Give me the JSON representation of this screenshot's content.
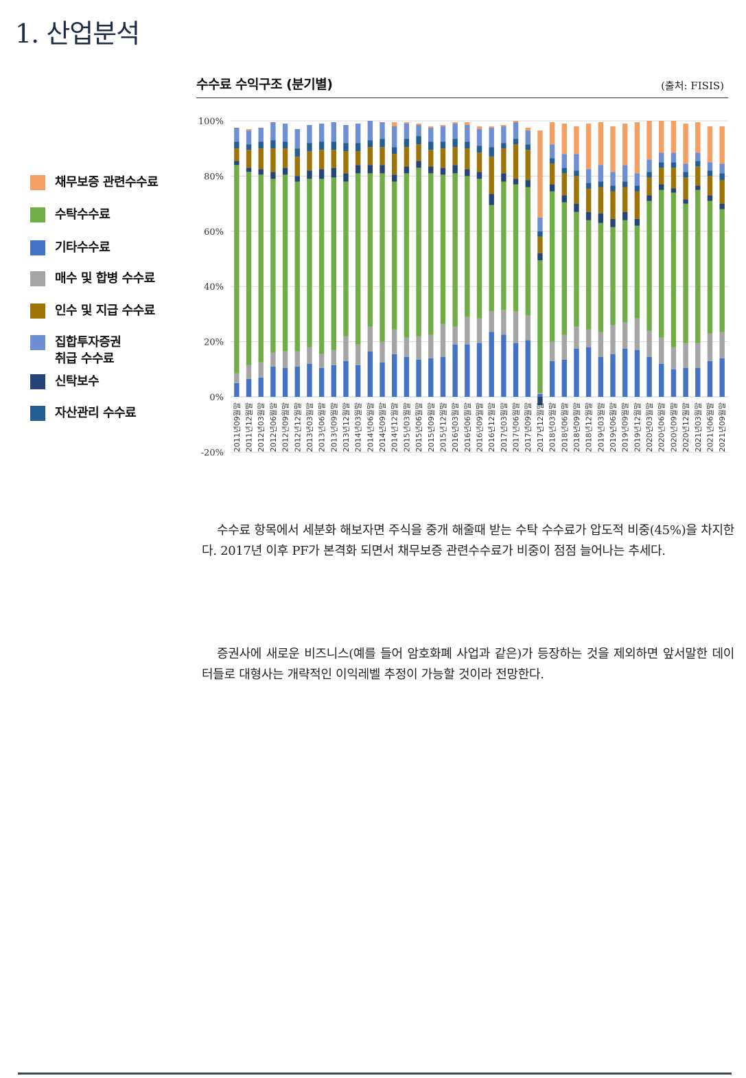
{
  "section_title": "1. 산업분석",
  "chart_header": {
    "title": "수수료 수익구조 (분기별)",
    "source": "(출처:  FISIS)"
  },
  "paragraphs": [
    "수수료 항목에서 세분화 해보자면 주식을 중개 해줄때 받는 수탁 수수료가 압도적 비중(45%)을 차지한다. 2017년 이후 PF가 본격화 되면서 채무보증 관련수수료가 비중이 점점 늘어나는 추세다.",
    "증권사에 새로운 비즈니스(예를 들어 암호화폐 사업과 같은)가 등장하는 것을 제외하면 앞서말한 데이터들로 대형사는 개략적인 이익레벨 추정이 가능할 것이라 전망한다."
  ],
  "chart_data": {
    "type": "bar",
    "stacked": true,
    "title": "수수료 수익구조 (분기별)",
    "xlabel": "",
    "ylabel": "",
    "ylim": [
      -20,
      100
    ],
    "yticks": [
      "-20%",
      "0%",
      "20%",
      "40%",
      "60%",
      "80%",
      "100%"
    ],
    "grid": true,
    "legend_position": "left",
    "categories": [
      "2011년09월말",
      "2011년12월말",
      "2012년03월말",
      "2012년06월말",
      "2012년09월말",
      "2012년12월말",
      "2013년03월말",
      "2013년06월말",
      "2013년09월말",
      "2013년12월말",
      "2014년03월말",
      "2014년06월말",
      "2014년09월말",
      "2014년12월말",
      "2015년03월말",
      "2015년06월말",
      "2015년09월말",
      "2015년12월말",
      "2016년03월말",
      "2016년06월말",
      "2016년09월말",
      "2016년12월말",
      "2017년03월말",
      "2017년06월말",
      "2017년09월말",
      "2017년12월말",
      "2018년03월말",
      "2018년06월말",
      "2018년09월말",
      "2018년12월말",
      "2019년03월말",
      "2019년06월말",
      "2019년09월말",
      "2019년12월말",
      "2020년03월말",
      "2020년06월말",
      "2020년09월말",
      "2020년12월말",
      "2021년03월말",
      "2021년06월말",
      "2021년09월말"
    ],
    "series": [
      {
        "name": "기타수수료",
        "color": "#4472c4",
        "values": [
          5,
          6.5,
          7,
          11,
          10.5,
          11,
          12,
          10.5,
          11.5,
          13,
          11.5,
          16.5,
          12.5,
          15.5,
          14.5,
          13.5,
          14,
          14.5,
          19,
          19,
          19.5,
          23.5,
          22.5,
          19.5,
          20.5,
          1,
          13,
          13.5,
          17.5,
          18,
          14.5,
          15.5,
          17.5,
          17,
          14.5,
          12,
          10,
          10.5,
          10.5,
          13,
          14
        ]
      },
      {
        "name": "매수 및 합병 수수료",
        "color": "#a5a5a5",
        "values": [
          3.5,
          5,
          5.5,
          5,
          6,
          5.5,
          6,
          5,
          5.5,
          9,
          7.5,
          9,
          7.5,
          9,
          7,
          8.5,
          8.5,
          12,
          6.5,
          10,
          9,
          7.5,
          9,
          11.5,
          9,
          0.5,
          7,
          9,
          8,
          6.5,
          9,
          10.5,
          9.5,
          11.5,
          9.5,
          9.5,
          8,
          9,
          9,
          10,
          9.5
        ]
      },
      {
        "name": "수탁수수료",
        "color": "#70ad47",
        "values": [
          75.5,
          70,
          68,
          63,
          64,
          61.5,
          61,
          63.5,
          62.5,
          56,
          62,
          55.5,
          61,
          53.5,
          59.5,
          61,
          58.5,
          54,
          55.5,
          51,
          50.5,
          38.5,
          46.5,
          46,
          46.5,
          48,
          54.5,
          48,
          41.5,
          39.5,
          39.5,
          35.5,
          37,
          33.5,
          47,
          53.5,
          56,
          50.5,
          55.5,
          48,
          44.5
        ]
      },
      {
        "name": "신탁보수",
        "color": "#264478",
        "values": [
          1.5,
          1.5,
          2,
          2.5,
          2.5,
          2,
          3,
          3.5,
          3.5,
          3,
          3,
          3,
          3,
          2.5,
          2.5,
          2.5,
          2.5,
          2.5,
          3,
          2.5,
          2.5,
          4,
          3,
          2,
          2.5,
          2.5,
          2.5,
          2.5,
          3,
          3,
          3.5,
          3,
          3,
          2.5,
          2,
          2,
          1.5,
          1.5,
          1.5,
          2,
          2
        ]
      },
      {
        "name": "인수 및 지급 수수료",
        "color": "#9e7408",
        "values": [
          4.5,
          6.5,
          7.5,
          8.5,
          7,
          7,
          7,
          7,
          6.5,
          8,
          5,
          6.5,
          6.5,
          7.5,
          7,
          6,
          6,
          7,
          6.5,
          7.5,
          7,
          13.5,
          9,
          12.5,
          11,
          6,
          7.5,
          8,
          10,
          8.5,
          9.5,
          10,
          9,
          10,
          6.5,
          6,
          7.5,
          8,
          7,
          7,
          8.5
        ]
      },
      {
        "name": "자산관리 수수료",
        "color": "#255e91",
        "values": [
          2.5,
          2,
          2.5,
          3,
          2.5,
          3,
          3,
          3,
          3,
          3,
          3,
          2.5,
          3,
          2.5,
          3,
          3,
          3,
          2.5,
          3,
          2.5,
          2.5,
          3.5,
          2,
          2,
          2,
          2,
          2,
          2,
          2,
          2,
          2,
          2,
          2,
          2,
          2,
          2,
          2,
          2,
          2,
          2,
          2.5
        ]
      },
      {
        "name": "집합투자증권\n취급 수수료",
        "color": "#6f8fd4",
        "values": [
          5,
          5,
          5,
          6.5,
          6.5,
          7,
          6.5,
          6.5,
          7,
          6.5,
          7,
          7,
          6,
          7.5,
          5.5,
          4,
          5,
          5.5,
          5.5,
          6,
          6,
          7,
          6,
          6,
          5,
          5,
          5,
          5,
          6,
          5,
          6,
          5,
          6,
          4.5,
          4.5,
          3.5,
          3.5,
          3,
          3,
          3,
          3.5
        ]
      },
      {
        "name": "채무보증 관련수수료",
        "color": "#f4a064",
        "values": [
          0,
          0.5,
          0,
          0,
          0,
          0,
          0,
          0,
          0,
          0,
          0,
          0,
          0,
          1.5,
          0.5,
          0.5,
          0.5,
          0.5,
          0.5,
          1,
          1,
          0.5,
          0.5,
          0.5,
          1,
          31.5,
          8,
          11,
          10,
          16.5,
          15.5,
          16.5,
          15,
          18.5,
          14,
          11.5,
          11.5,
          14.5,
          11,
          13,
          13.5
        ]
      }
    ],
    "annotations": [
      {
        "category": "2017년12월말",
        "series": "신탁보수",
        "value": -3
      }
    ]
  }
}
